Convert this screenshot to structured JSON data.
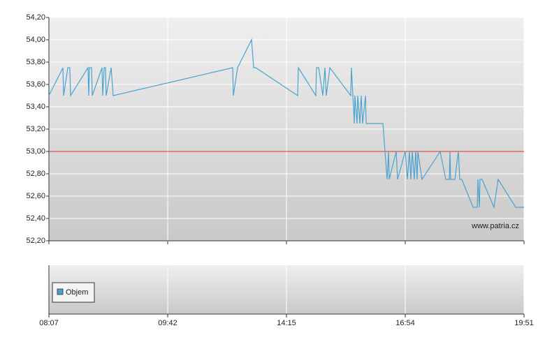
{
  "chart_data": {
    "type": "line",
    "color": "#4aa3cf",
    "x": [
      0,
      0.118,
      0.124,
      0.159,
      0.176,
      0.182,
      0.329,
      0.335,
      0.341,
      0.359,
      0.365,
      0.447,
      0.453,
      0.465,
      0.476,
      0.482,
      0.524,
      0.541,
      1.547,
      1.553,
      1.588,
      1.706,
      1.724,
      1.741,
      2.094,
      2.1,
      2.247,
      2.253,
      2.271,
      2.306,
      2.324,
      2.335,
      2.365,
      2.541,
      2.547,
      2.559,
      2.571,
      2.576,
      2.594,
      2.6,
      2.618,
      2.629,
      2.641,
      2.665,
      2.671,
      2.812,
      2.847,
      2.859,
      2.865,
      2.924,
      2.935,
      3,
      3.018,
      3.035,
      3.047,
      3.059,
      3.076,
      3.088,
      3.1,
      3.106,
      3.141,
      3.294,
      3.341,
      3.371,
      3.376,
      3.382,
      3.418,
      3.447,
      3.459,
      3.476,
      3.571,
      3.606,
      3.612,
      3.624,
      3.629,
      3.647,
      3.747,
      3.782,
      3.929,
      4
    ],
    "values": [
      53.5,
      53.75,
      53.5,
      53.75,
      53.75,
      53.5,
      53.75,
      53.5,
      53.75,
      53.75,
      53.5,
      53.75,
      53.5,
      53.75,
      53.75,
      53.5,
      53.75,
      53.5,
      53.75,
      53.5,
      53.75,
      54,
      53.75,
      53.75,
      53.5,
      53.75,
      53.5,
      53.75,
      53.75,
      53.5,
      53.75,
      53.5,
      53.75,
      53.5,
      53.75,
      53.5,
      53.25,
      53.5,
      53.25,
      53.5,
      53.25,
      53.5,
      53.25,
      53.5,
      53.25,
      53.25,
      52.75,
      53,
      52.75,
      53,
      52.75,
      53,
      52.75,
      53,
      52.75,
      53,
      52.75,
      53,
      52.75,
      53,
      52.75,
      53,
      52.75,
      52.75,
      53,
      52.75,
      52.75,
      53,
      52.75,
      52.75,
      52.5,
      52.5,
      52.75,
      52.5,
      52.75,
      52.75,
      52.5,
      52.75,
      52.5,
      52.5
    ],
    "xlim": [
      0,
      4
    ],
    "xticks": [
      {
        "value": 0,
        "label": "08:07"
      },
      {
        "value": 1,
        "label": "09:42"
      },
      {
        "value": 2,
        "label": "14:15"
      },
      {
        "value": 3,
        "label": "16:54"
      },
      {
        "value": 4,
        "label": "19:51"
      }
    ],
    "ylim": [
      52.2,
      54.2
    ],
    "yticks": [
      {
        "value": 52.2,
        "label": "52,20"
      },
      {
        "value": 52.4,
        "label": "52,40"
      },
      {
        "value": 52.6,
        "label": "52,60"
      },
      {
        "value": 52.8,
        "label": "52,80"
      },
      {
        "value": 53,
        "label": "53,00"
      },
      {
        "value": 53.2,
        "label": "53,20"
      },
      {
        "value": 53.4,
        "label": "53,40"
      },
      {
        "value": 53.6,
        "label": "53,60"
      },
      {
        "value": 53.8,
        "label": "53,80"
      },
      {
        "value": 54,
        "label": "54,00"
      },
      {
        "value": 54.2,
        "label": "54,20"
      }
    ],
    "grid": true,
    "reference_line": {
      "value": 53,
      "color": "#e0302a"
    },
    "watermark": "www.patria.cz",
    "lower_panel": {
      "legend": "Objem",
      "color": "#4a9fd4"
    }
  }
}
